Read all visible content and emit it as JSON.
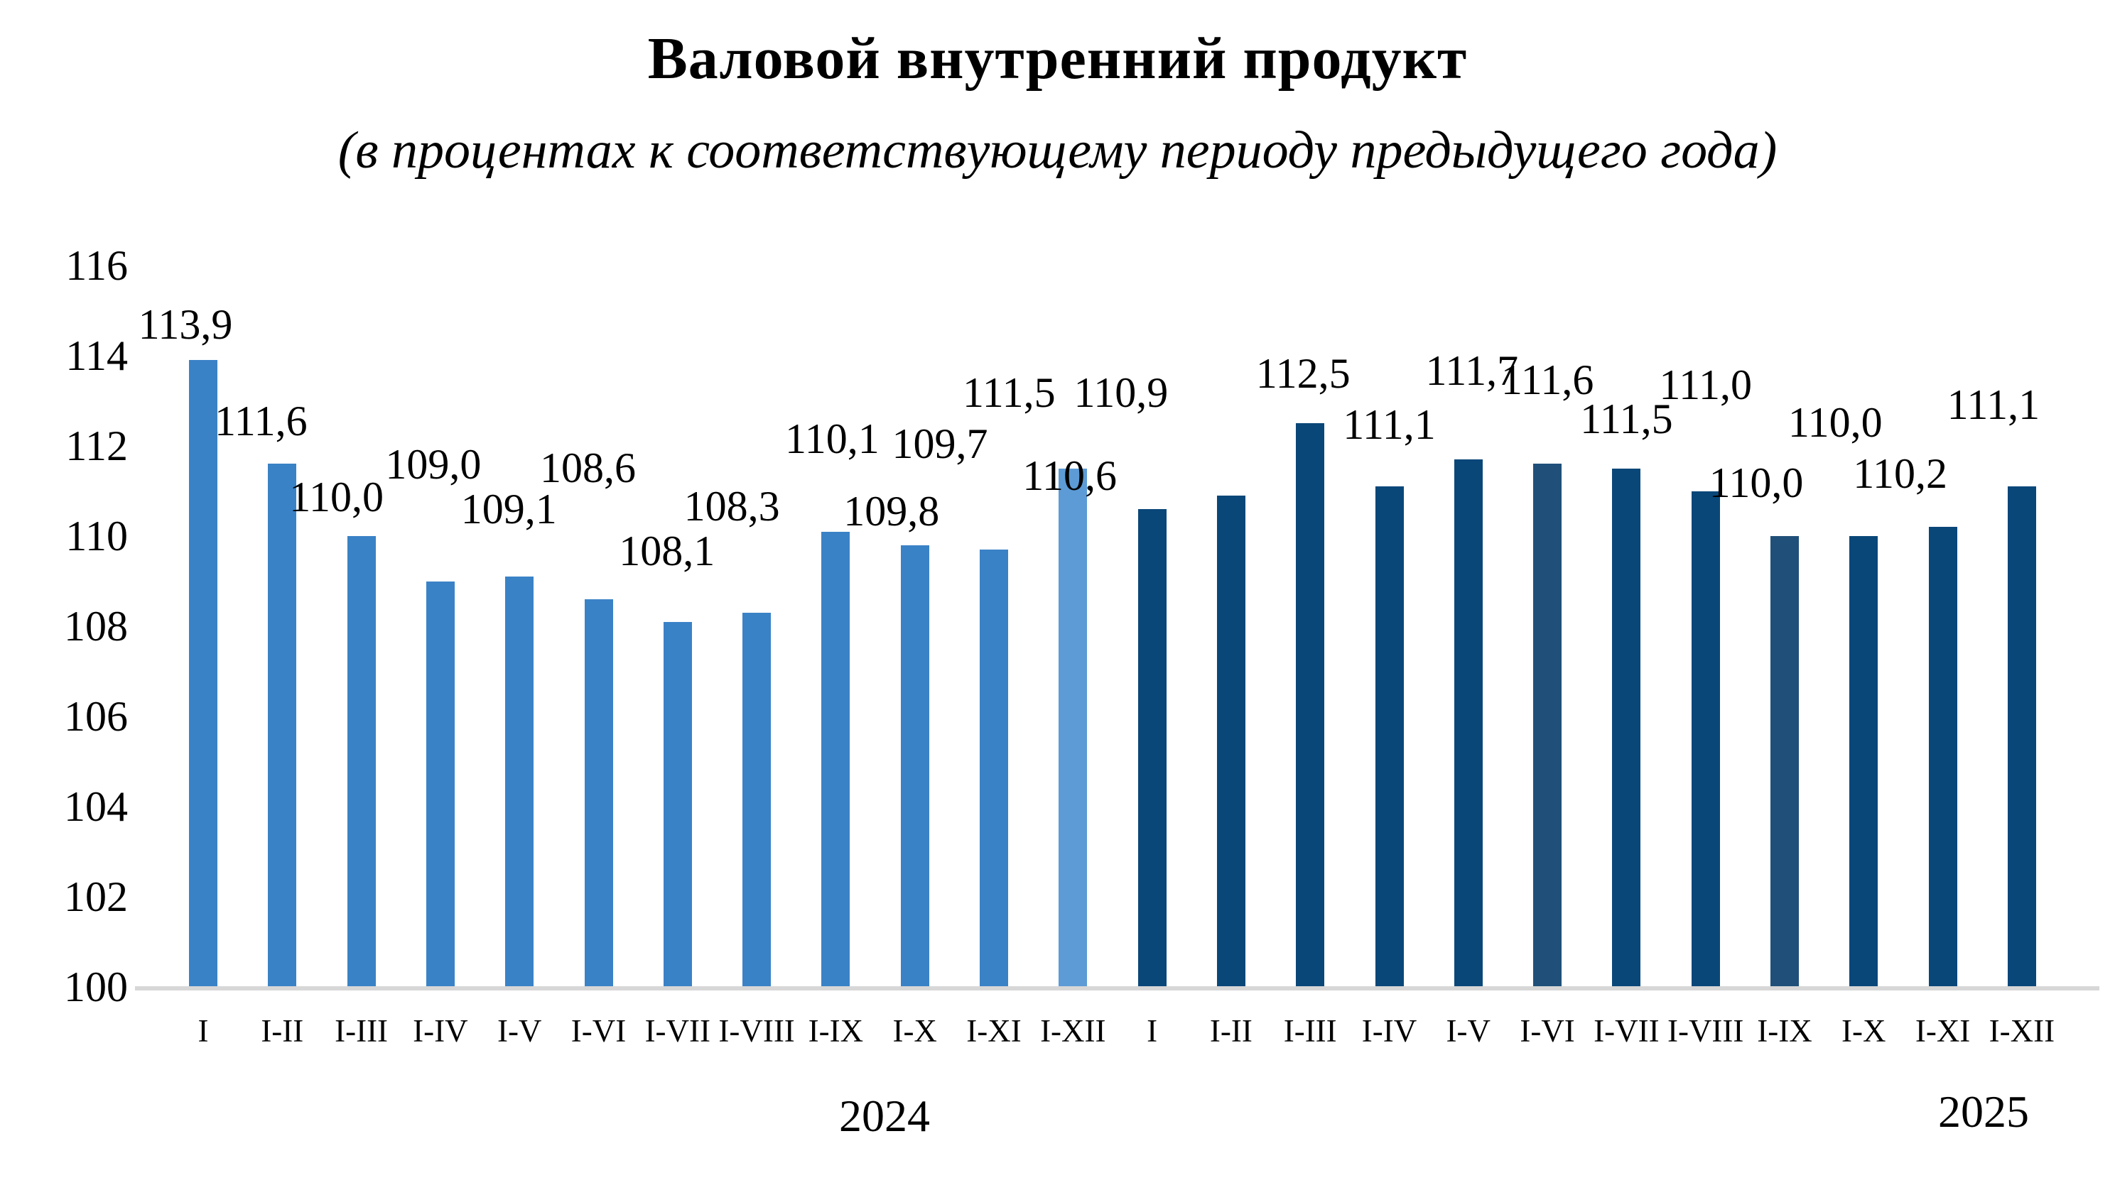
{
  "chart_data": {
    "type": "bar",
    "title": "Валовой внутренний продукт",
    "subtitle": "(в процентах к соответствующему периоду предыдущего года)",
    "xlabel": "",
    "ylabel": "",
    "ylim": [
      100,
      116
    ],
    "ytick_step": 2,
    "grid": false,
    "legend_position": "none",
    "decimal_separator": ",",
    "categories": [
      "I",
      "I-II",
      "I-III",
      "I-IV",
      "I-V",
      "I-VI",
      "I-VII",
      "I-VIII",
      "I-IX",
      "I-X",
      "I-XI",
      "I-XII"
    ],
    "series": [
      {
        "name": "2024",
        "values": [
          113.9,
          111.6,
          110.0,
          109.0,
          109.1,
          108.6,
          108.1,
          108.3,
          110.1,
          109.8,
          109.7,
          111.5
        ]
      },
      {
        "name": "2025",
        "values": [
          110.6,
          110.9,
          112.5,
          111.1,
          111.7,
          111.6,
          111.5,
          111.0,
          110.0,
          110.0,
          110.2,
          111.1
        ]
      }
    ],
    "group_labels": [
      "2024",
      "2025"
    ],
    "colors": {
      "bar_2024": "#3A82C6",
      "bar_2024_highlight": "#5C9BD6",
      "bar_2024_highlight_index": 11,
      "bar_2025": "#0A4779",
      "bar_2025_muted": "#20507A",
      "bar_2025_muted_indices": [
        5,
        8
      ],
      "axis_line": "#D7D7D7",
      "text": "#000000",
      "background": "#FFFFFF"
    }
  }
}
